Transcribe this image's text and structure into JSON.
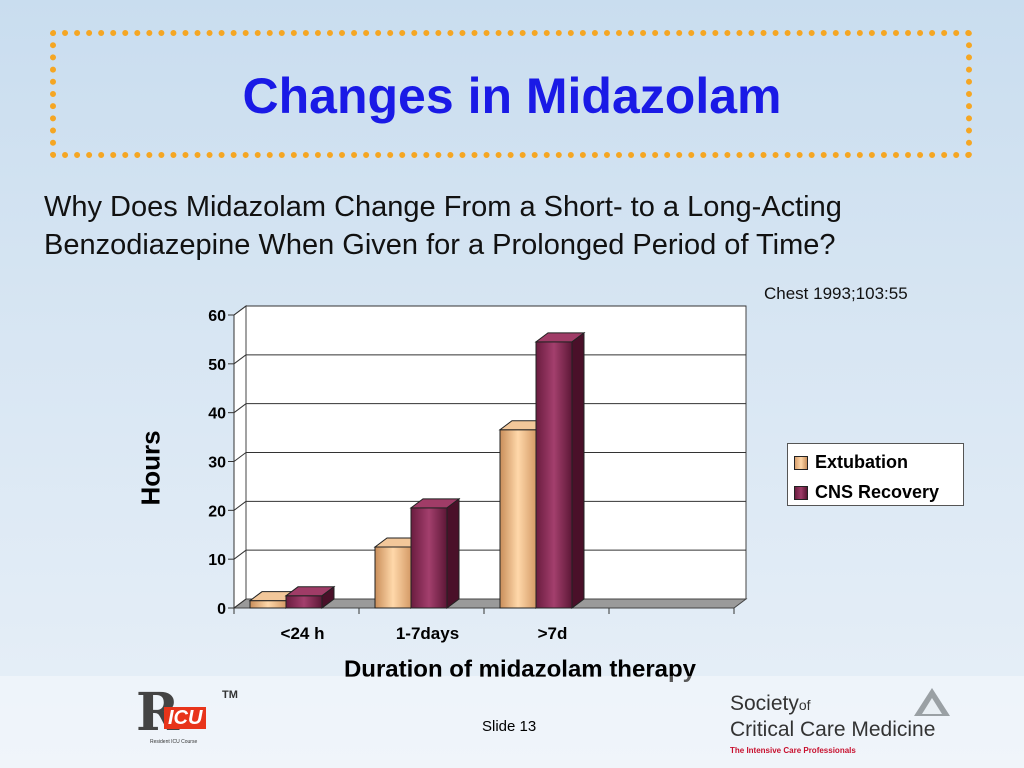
{
  "slide": {
    "title": "Changes in Midazolam",
    "subtitle_line1": "Why Does Midazolam Change From a Short- to a Long-Acting",
    "subtitle_line2": "Benzodiazepine When Given for a Prolonged Period of Time?",
    "citation": "Chest 1993;103:55",
    "slide_number": "Slide 13"
  },
  "logos": {
    "left_letter": "R",
    "left_word": "ICU",
    "left_tm": "TM",
    "left_subtitle": "Resident ICU Course",
    "right_line1": "Society",
    "right_line1_of": "of",
    "right_line2": "Critical Care Medicine",
    "right_tagline": "The Intensive Care Professionals"
  },
  "colors": {
    "title": "#1a1ae6",
    "border": "#f5a623",
    "extubation": "#f5c08c",
    "cns_recovery": "#8b2a55"
  },
  "chart_data": {
    "type": "bar",
    "categories": [
      "<24 h",
      "1-7days",
      ">7d"
    ],
    "series": [
      {
        "name": "Extubation",
        "values": [
          1.5,
          12.5,
          36.5
        ]
      },
      {
        "name": "CNS Recovery",
        "values": [
          2.5,
          20.5,
          54.5
        ]
      }
    ],
    "xlabel": "Duration of midazolam therapy",
    "ylabel": "Hours",
    "ylim": [
      0,
      60
    ],
    "yticks": [
      0,
      10,
      20,
      30,
      40,
      50,
      60
    ],
    "grid": true,
    "legend_position": "right",
    "style": "3d-clustered"
  }
}
